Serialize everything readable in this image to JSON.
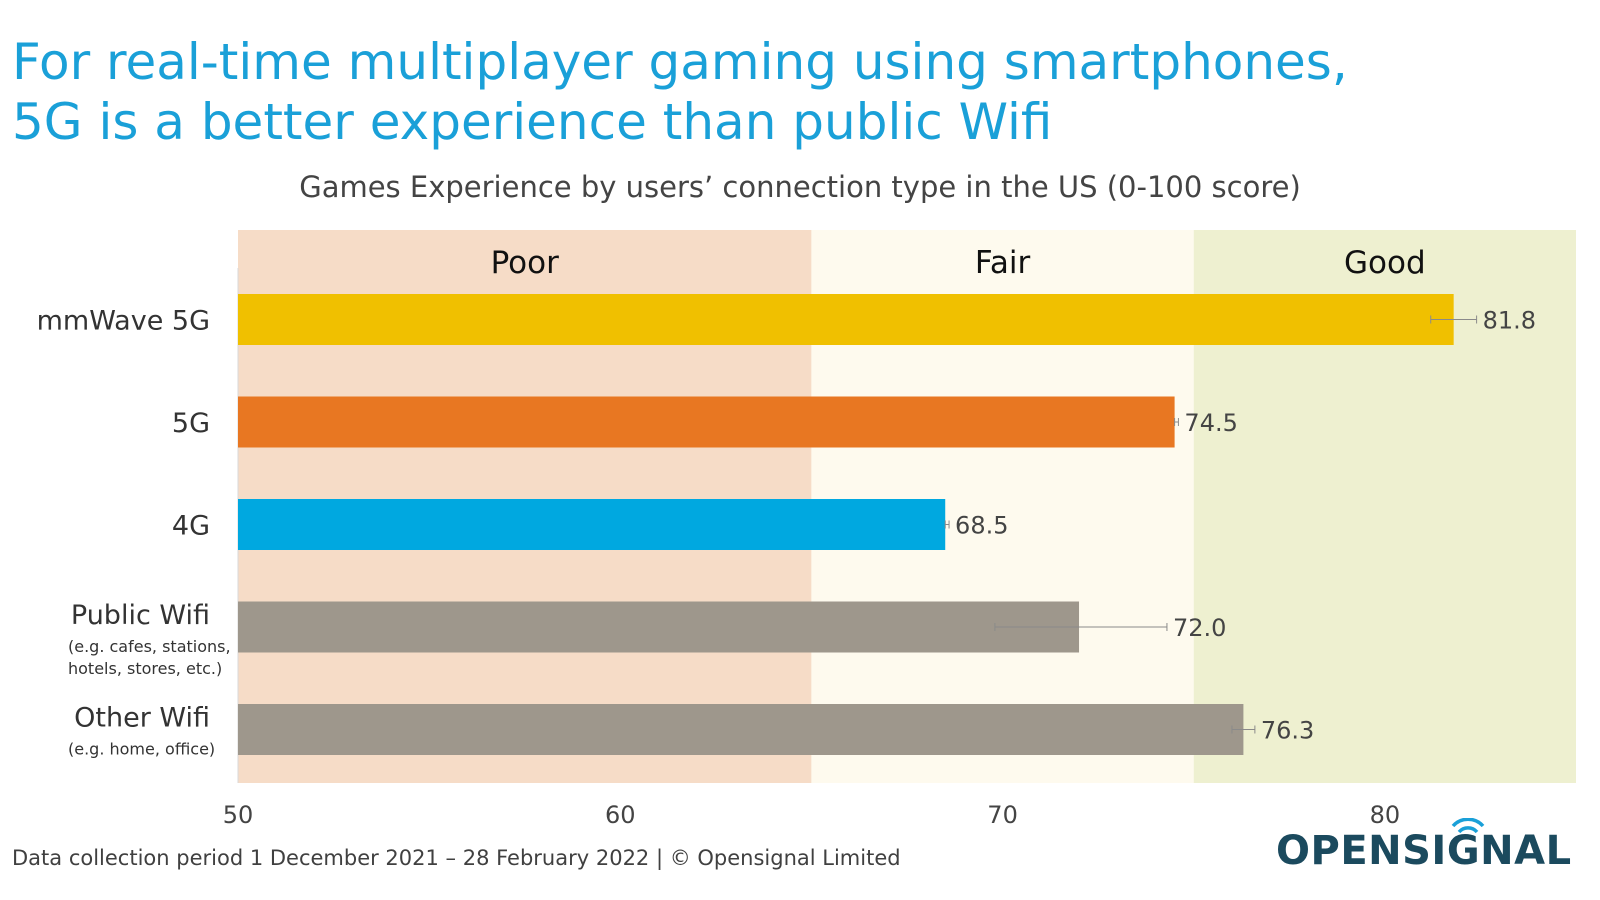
{
  "title_line1": "For real-time multiplayer gaming using smartphones,",
  "title_line2": "5G is a better experience than public Wifi",
  "footer": "Data collection period 1 December 2021 –  28 February 2022  |  © Opensignal Limited",
  "logo": "OPENSIGNAL",
  "colors": {
    "title": "#1aa0d8",
    "poor_band": "#f6dcc7",
    "fair_band": "#fefaee",
    "good_band": "#eef0d0",
    "mmwave": "#f0c000",
    "5g": "#e87722",
    "4g": "#00a8e0",
    "wifi": "#9e978c",
    "logo": "#1b4a5e"
  },
  "chart_data": {
    "type": "bar",
    "orientation": "horizontal",
    "title": "Games Experience by users’ connection type in the US (0-100 score)",
    "categories": [
      "mmWave 5G",
      "5G",
      "4G",
      "Public Wifi",
      "Other Wifi"
    ],
    "category_notes": [
      "",
      "",
      "",
      "(e.g. cafes, stations,|hotels, stores, etc.)",
      "(e.g. home, office)"
    ],
    "values": [
      81.8,
      74.5,
      68.5,
      72.0,
      76.3
    ],
    "value_labels": [
      "81.8",
      "74.5",
      "68.5",
      "72.0",
      "76.3"
    ],
    "error_low": [
      81.2,
      74.5,
      68.5,
      69.8,
      76.0
    ],
    "error_high": [
      82.4,
      74.6,
      68.6,
      74.3,
      76.6
    ],
    "bar_colors": [
      "#f0c000",
      "#e87722",
      "#00a8e0",
      "#9e978c",
      "#9e978c"
    ],
    "xlim": [
      50,
      85
    ],
    "xticks": [
      50,
      60,
      70,
      80
    ],
    "xtick_labels": [
      "50",
      "60",
      "70",
      "80"
    ],
    "bands": [
      {
        "label": "Poor",
        "from": 50,
        "to": 65,
        "color": "#f6dcc7"
      },
      {
        "label": "Fair",
        "from": 65,
        "to": 75,
        "color": "#fefaee"
      },
      {
        "label": "Good",
        "from": 75,
        "to": 85,
        "color": "#eef0d0"
      }
    ],
    "grid": false,
    "legend": "none"
  }
}
